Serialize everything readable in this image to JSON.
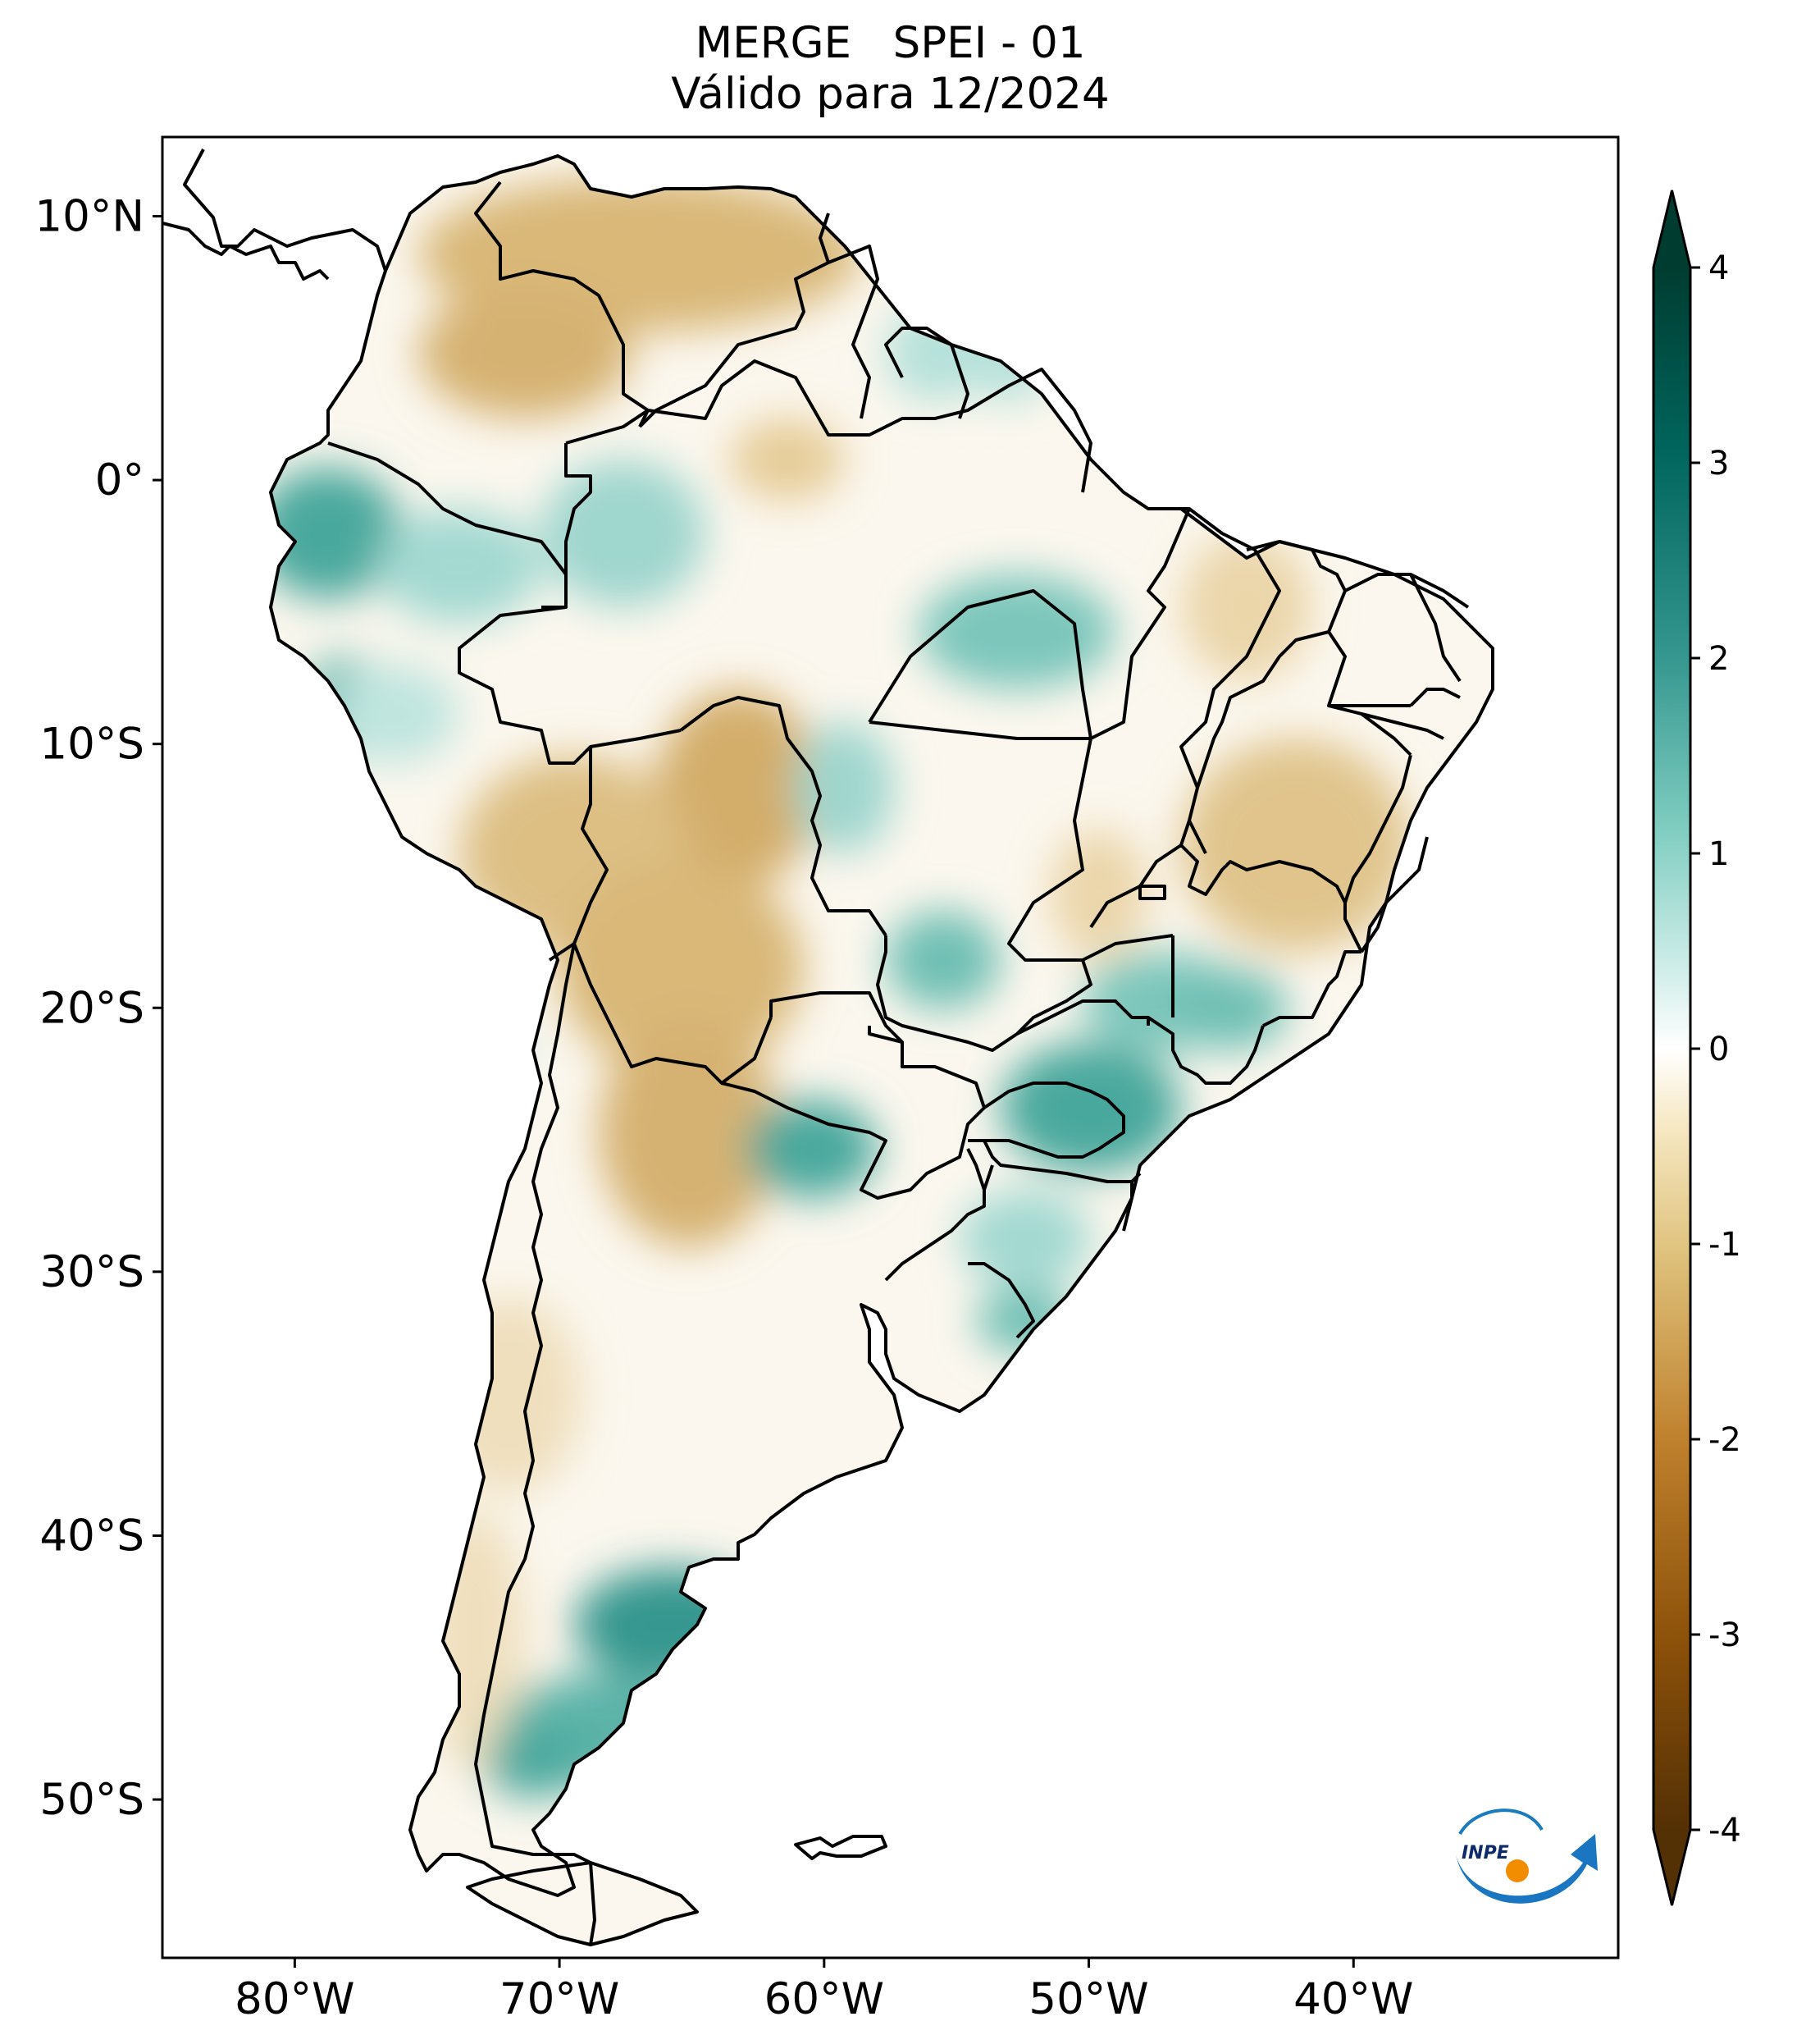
{
  "title": {
    "line1": "MERGE   SPEI - 01",
    "line2": "Válido para 12/2024"
  },
  "map": {
    "region": "South America",
    "lon_range": [
      -85,
      -30
    ],
    "lat_range": [
      -56,
      13
    ],
    "xticks": [
      {
        "value": -80,
        "label": "80°W"
      },
      {
        "value": -70,
        "label": "70°W"
      },
      {
        "value": -60,
        "label": "60°W"
      },
      {
        "value": -50,
        "label": "50°W"
      },
      {
        "value": -40,
        "label": "40°W"
      }
    ],
    "yticks": [
      {
        "value": 10,
        "label": "10°N"
      },
      {
        "value": 0,
        "label": "0°"
      },
      {
        "value": -10,
        "label": "10°S"
      },
      {
        "value": -20,
        "label": "20°S"
      },
      {
        "value": -30,
        "label": "30°S"
      },
      {
        "value": -40,
        "label": "40°S"
      },
      {
        "value": -50,
        "label": "50°S"
      }
    ]
  },
  "colorbar": {
    "min": -4,
    "max": 4,
    "ticks": [
      {
        "value": 4,
        "label": "4"
      },
      {
        "value": 3,
        "label": "3"
      },
      {
        "value": 2,
        "label": "2"
      },
      {
        "value": 1,
        "label": "1"
      },
      {
        "value": 0,
        "label": "0"
      },
      {
        "value": -1,
        "label": "-1"
      },
      {
        "value": -2,
        "label": "-2"
      },
      {
        "value": -3,
        "label": "-3"
      },
      {
        "value": -4,
        "label": "-4"
      }
    ],
    "colors": [
      "#543005",
      "#8c510a",
      "#bf812d",
      "#dfc27d",
      "#f6e8c3",
      "#ffffff",
      "#c7eae5",
      "#80cdc1",
      "#35978f",
      "#01665e",
      "#003c30"
    ]
  },
  "logo": {
    "text": "INPE"
  }
}
